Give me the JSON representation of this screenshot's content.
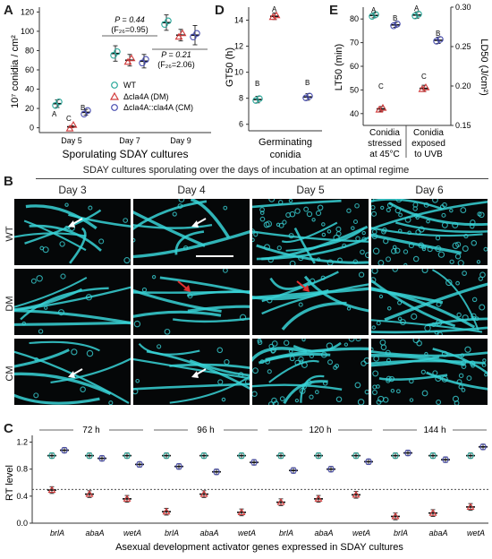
{
  "panel_letters": {
    "a": "A",
    "b": "B",
    "c": "C",
    "d": "D",
    "e": "E"
  },
  "panelA": {
    "ylabel": "10⁷ conidia / cm²",
    "xlabel": "Sporulating SDAY cultures",
    "yticks": [
      "0",
      "20",
      "40",
      "60",
      "80",
      "100",
      "120"
    ],
    "days": [
      "Day 5",
      "Day 7",
      "Day 9"
    ],
    "legend": [
      "WT",
      "Δcla4A (DM)",
      "Δcla4A::cla4A (CM)"
    ],
    "stats_day7": [
      "P = 0.44",
      "(F₂₆=0.95)"
    ],
    "stats_day9": [
      "P = 0.21",
      "(F₂₆=2.06)"
    ],
    "letters_day5": [
      "A",
      "C",
      "B"
    ]
  },
  "panelB": {
    "title": "SDAY cultures sporulating over the days of incubation at an optimal regime",
    "days": [
      "Day 3",
      "Day 4",
      "Day 5",
      "Day 6"
    ],
    "rows": [
      "WT",
      "DM",
      "CM"
    ]
  },
  "panelC": {
    "ylabel": "RT level",
    "xlabel": "Asexual development activator genes expressed in SDAY cultures",
    "times": [
      "72 h",
      "96 h",
      "120 h",
      "144 h"
    ],
    "genes": [
      "brlA",
      "abaA",
      "wetA"
    ],
    "yticks": [
      "0.0",
      "0.4",
      "0.8",
      "1.2"
    ]
  },
  "panelD": {
    "ylabel": "GT50 (h)",
    "xlabel": [
      "Germinating",
      "conidia"
    ],
    "yticks": [
      "6",
      "8",
      "10",
      "12",
      "14"
    ],
    "letters": [
      "B",
      "A",
      "B"
    ]
  },
  "panelE": {
    "ylabel_left": "LT50 (min)",
    "ylabel_right": "LD50 (J/cm²)",
    "yticks_left": [
      "40",
      "50",
      "60",
      "70",
      "80"
    ],
    "yticks_right": [
      "0.15",
      "0.20",
      "0.25",
      "0.30"
    ],
    "groups": [
      [
        "Conidia",
        "stressed",
        "at 45°C"
      ],
      [
        "Conidia",
        "exposed",
        "to UVB"
      ]
    ],
    "letters": [
      [
        "A",
        "C",
        "B"
      ],
      [
        "A",
        "C",
        "B"
      ]
    ]
  },
  "colors": {
    "wt": "#2aa89a",
    "dm": "#d23b3b",
    "cm": "#4a4fb0",
    "cyan": "#38d2d6"
  },
  "chart_data": [
    {
      "type": "scatter",
      "title": "",
      "ylabel": "10⁷ conidia / cm²",
      "xlabel": "Sporulating SDAY cultures",
      "ylim": [
        -5,
        125
      ],
      "categories": [
        "Day 5",
        "Day 7",
        "Day 9"
      ],
      "series": [
        {
          "name": "WT",
          "values": [
            25,
            77,
            109
          ],
          "err": [
            4,
            8,
            8
          ]
        },
        {
          "name": "Δcla4A (DM)",
          "values": [
            1,
            70,
            96
          ],
          "err": [
            1,
            6,
            6
          ]
        },
        {
          "name": "Δcla4A::cla4A (CM)",
          "values": [
            16,
            69,
            96
          ],
          "err": [
            3,
            7,
            10
          ]
        }
      ]
    },
    {
      "type": "scatter",
      "ylabel": "RT level",
      "xlabel": "Asexual development activator genes expressed in SDAY cultures",
      "ylim": [
        0,
        1.3
      ],
      "reference_line": 0.5,
      "groups": [
        "72 h",
        "96 h",
        "120 h",
        "144 h"
      ],
      "genes": [
        "brlA",
        "abaA",
        "wetA"
      ],
      "series": [
        {
          "name": "WT",
          "values": [
            [
              1.0,
              1.0,
              1.0
            ],
            [
              1.0,
              1.0,
              1.0
            ],
            [
              1.0,
              1.0,
              1.0
            ],
            [
              1.0,
              1.0,
              1.0
            ]
          ]
        },
        {
          "name": "DM",
          "values": [
            [
              0.49,
              0.43,
              0.36
            ],
            [
              0.17,
              0.43,
              0.16
            ],
            [
              0.31,
              0.36,
              0.42
            ],
            [
              0.1,
              0.15,
              0.24
            ]
          ]
        },
        {
          "name": "CM",
          "values": [
            [
              1.08,
              0.96,
              0.87
            ],
            [
              0.84,
              0.76,
              0.9
            ],
            [
              0.78,
              0.8,
              0.91
            ],
            [
              1.04,
              0.94,
              1.13
            ]
          ]
        }
      ]
    },
    {
      "type": "scatter",
      "ylabel": "GT50 (h)",
      "xlabel": "Germinating conidia",
      "ylim": [
        5.5,
        15
      ],
      "series": [
        {
          "name": "WT",
          "values": [
            7.9
          ]
        },
        {
          "name": "DM",
          "values": [
            14.3
          ]
        },
        {
          "name": "CM",
          "values": [
            8.1
          ]
        }
      ]
    },
    {
      "type": "scatter",
      "ylabel": "LT50 (min)",
      "y2label": "LD50 (J/cm²)",
      "categories": [
        "Conidia stressed at 45°C",
        "Conidia exposed to UVB"
      ],
      "ylim": [
        35,
        85
      ],
      "y2lim": [
        0.15,
        0.3
      ],
      "series": [
        {
          "name": "WT",
          "values": [
            81.5,
            0.29
          ]
        },
        {
          "name": "DM",
          "values": [
            42,
            0.197
          ]
        },
        {
          "name": "CM",
          "values": [
            77.5,
            0.258
          ]
        }
      ]
    }
  ]
}
